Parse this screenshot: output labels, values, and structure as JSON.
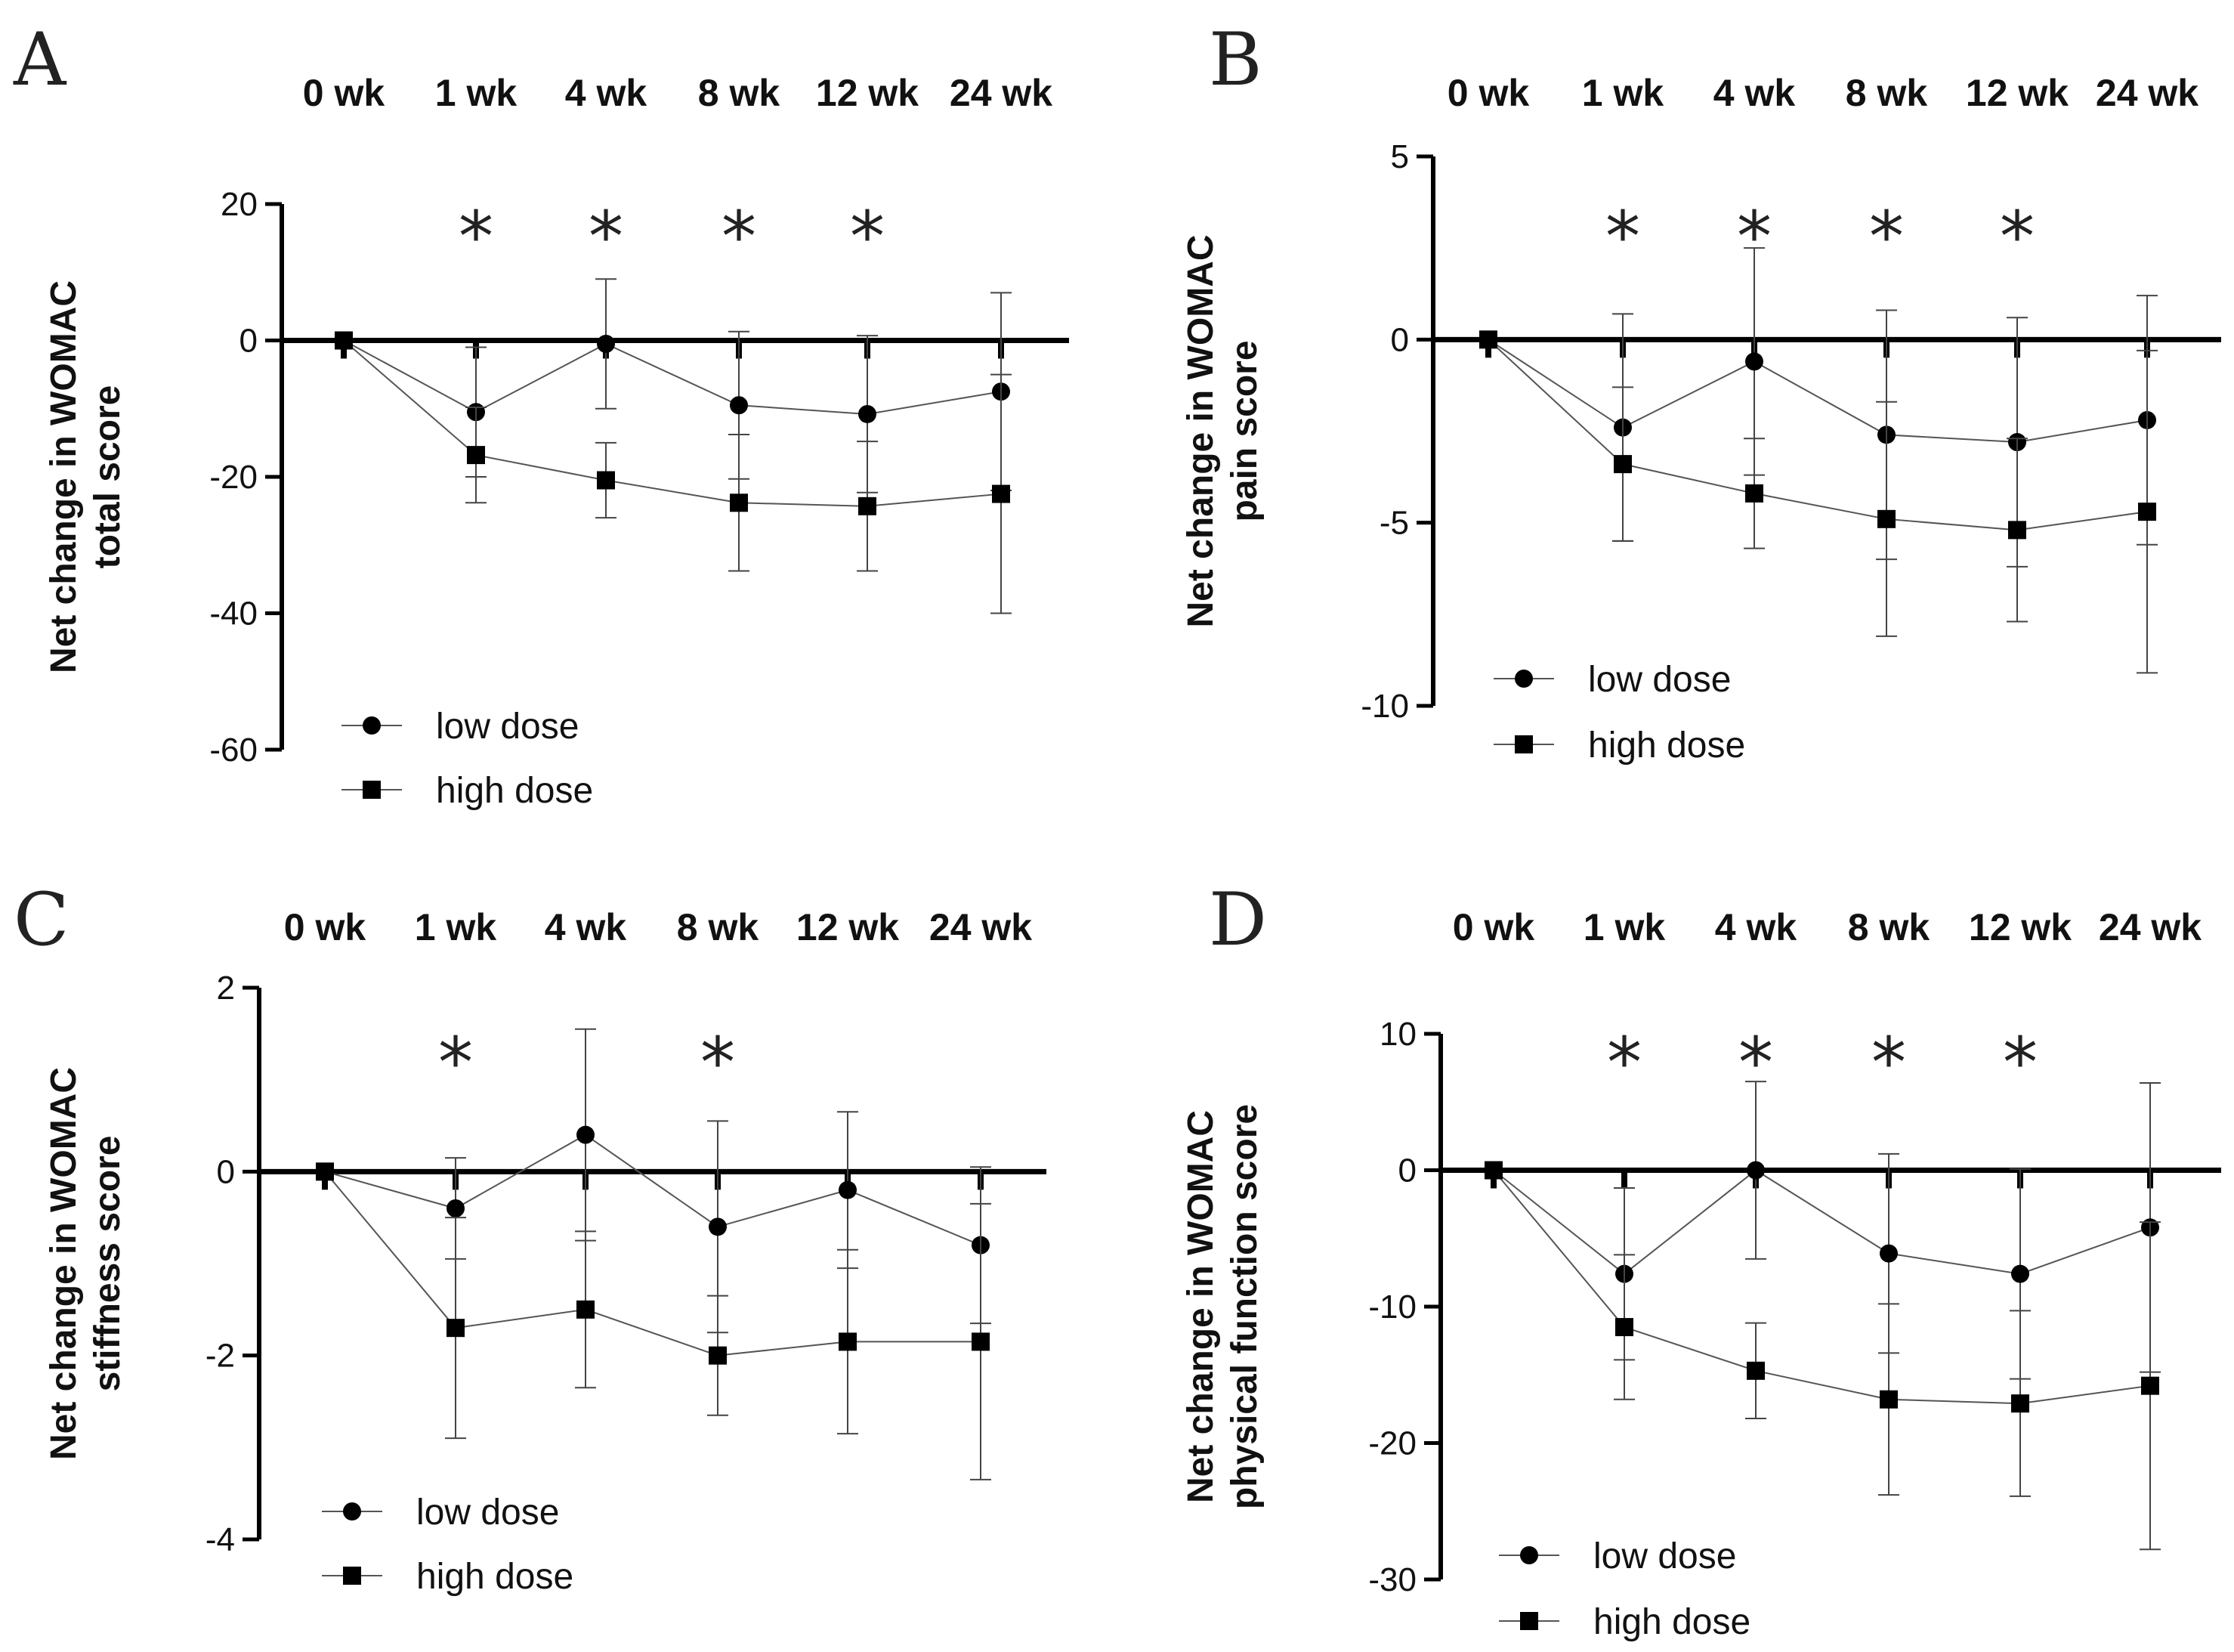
{
  "legend": {
    "low": "low dose",
    "high": "high dose"
  },
  "chart_data": [
    {
      "type": "line",
      "panel": "A",
      "timepoints": [
        "0 wk",
        "1 wk",
        "4 wk",
        "8 wk",
        "12 wk",
        "24 wk"
      ],
      "ylabel": [
        "Net change in WOMAC",
        "total score"
      ],
      "ylim": [
        -60,
        20
      ],
      "yticks": [
        20,
        0,
        -20,
        -40,
        -60
      ],
      "significant": [
        1,
        2,
        3,
        4
      ],
      "series": [
        {
          "name": "low dose",
          "marker": "circle",
          "values": [
            0,
            -10.5,
            -0.5,
            -9.5,
            -10.8,
            -7.5
          ],
          "error": [
            0,
            9.5,
            9.5,
            10.8,
            11.5,
            14.5
          ]
        },
        {
          "name": "high dose",
          "marker": "square",
          "values": [
            0,
            -16.8,
            -20.5,
            -23.8,
            -24.3,
            -22.5
          ],
          "error": [
            0,
            7.0,
            5.5,
            10.0,
            9.5,
            17.5
          ]
        }
      ]
    },
    {
      "type": "line",
      "panel": "B",
      "timepoints": [
        "0 wk",
        "1 wk",
        "4 wk",
        "8 wk",
        "12 wk",
        "24 wk"
      ],
      "ylabel": [
        "Net change in WOMAC",
        "pain score"
      ],
      "ylim": [
        -10,
        5
      ],
      "yticks": [
        5,
        0,
        -5,
        -10
      ],
      "significant": [
        1,
        2,
        3,
        4
      ],
      "series": [
        {
          "name": "low dose",
          "marker": "circle",
          "values": [
            0,
            -2.4,
            -0.6,
            -2.6,
            -2.8,
            -2.2
          ],
          "error": [
            0,
            3.1,
            3.1,
            3.4,
            3.4,
            3.4
          ]
        },
        {
          "name": "high dose",
          "marker": "square",
          "values": [
            0,
            -3.4,
            -4.2,
            -4.9,
            -5.2,
            -4.7
          ],
          "error": [
            0,
            2.1,
            1.5,
            3.2,
            2.5,
            4.4
          ]
        }
      ]
    },
    {
      "type": "line",
      "panel": "C",
      "timepoints": [
        "0 wk",
        "1 wk",
        "4 wk",
        "8 wk",
        "12 wk",
        "24 wk"
      ],
      "ylabel": [
        "Net change in WOMAC",
        "stiffness score"
      ],
      "ylim": [
        -4,
        2
      ],
      "yticks": [
        2,
        0,
        -2,
        -4
      ],
      "significant": [
        1,
        3
      ],
      "series": [
        {
          "name": "low dose",
          "marker": "circle",
          "values": [
            0,
            -0.4,
            0.4,
            -0.6,
            -0.2,
            -0.8
          ],
          "error": [
            0,
            0.55,
            1.15,
            1.15,
            0.85,
            0.85
          ]
        },
        {
          "name": "high dose",
          "marker": "square",
          "values": [
            0,
            -1.7,
            -1.5,
            -2.0,
            -1.85,
            -1.85
          ],
          "error": [
            0,
            1.2,
            0.85,
            0.65,
            1.0,
            1.5
          ]
        }
      ]
    },
    {
      "type": "line",
      "panel": "D",
      "timepoints": [
        "0 wk",
        "1 wk",
        "4 wk",
        "8 wk",
        "12 wk",
        "24 wk"
      ],
      "ylabel": [
        "Net change in WOMAC",
        "physical function score"
      ],
      "ylim": [
        -30,
        10
      ],
      "yticks": [
        10,
        0,
        -10,
        -20,
        -30
      ],
      "significant": [
        1,
        2,
        3,
        4
      ],
      "series": [
        {
          "name": "low dose",
          "marker": "circle",
          "values": [
            0,
            -7.6,
            0,
            -6.1,
            -7.6,
            -4.2
          ],
          "error": [
            0,
            6.3,
            6.5,
            7.3,
            7.7,
            10.6
          ]
        },
        {
          "name": "high dose",
          "marker": "square",
          "values": [
            0,
            -11.5,
            -14.7,
            -16.8,
            -17.1,
            -15.8
          ],
          "error": [
            0,
            5.3,
            3.5,
            7.0,
            6.8,
            12.0
          ]
        }
      ]
    }
  ]
}
